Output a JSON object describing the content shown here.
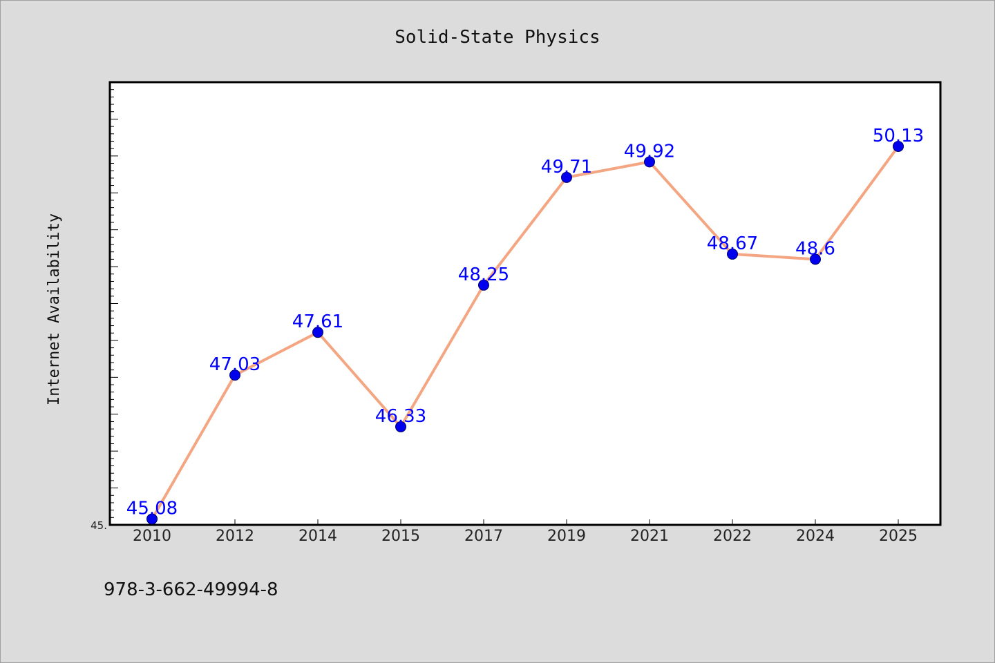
{
  "chart_data": {
    "type": "line",
    "title": "Solid-State Physics",
    "xlabel": "",
    "ylabel": "Internet Availability",
    "categories": [
      "2010",
      "2012",
      "2014",
      "2015",
      "2017",
      "2019",
      "2021",
      "2022",
      "2024",
      "2025"
    ],
    "series": [
      {
        "values": [
          45.08,
          47.03,
          47.61,
          46.33,
          48.25,
          49.71,
          49.92,
          48.67,
          48.6,
          50.13
        ],
        "labels": [
          "45.08",
          "47.03",
          "47.61",
          "46.33",
          "48.25",
          "49.71",
          "49.92",
          "48.67",
          "48.6",
          "50.13"
        ]
      }
    ],
    "ylim": [
      45.0,
      51.0
    ],
    "y_tick_labels": [
      "45."
    ],
    "grid": false,
    "legend": "none",
    "colors": {
      "line": "#f4a582",
      "marker": "#0000ee",
      "data_label": "#0000ff",
      "background": "#dcdcdc",
      "plot_background": "#ffffff"
    }
  },
  "footer": {
    "isbn": "978-3-662-49994-8"
  }
}
